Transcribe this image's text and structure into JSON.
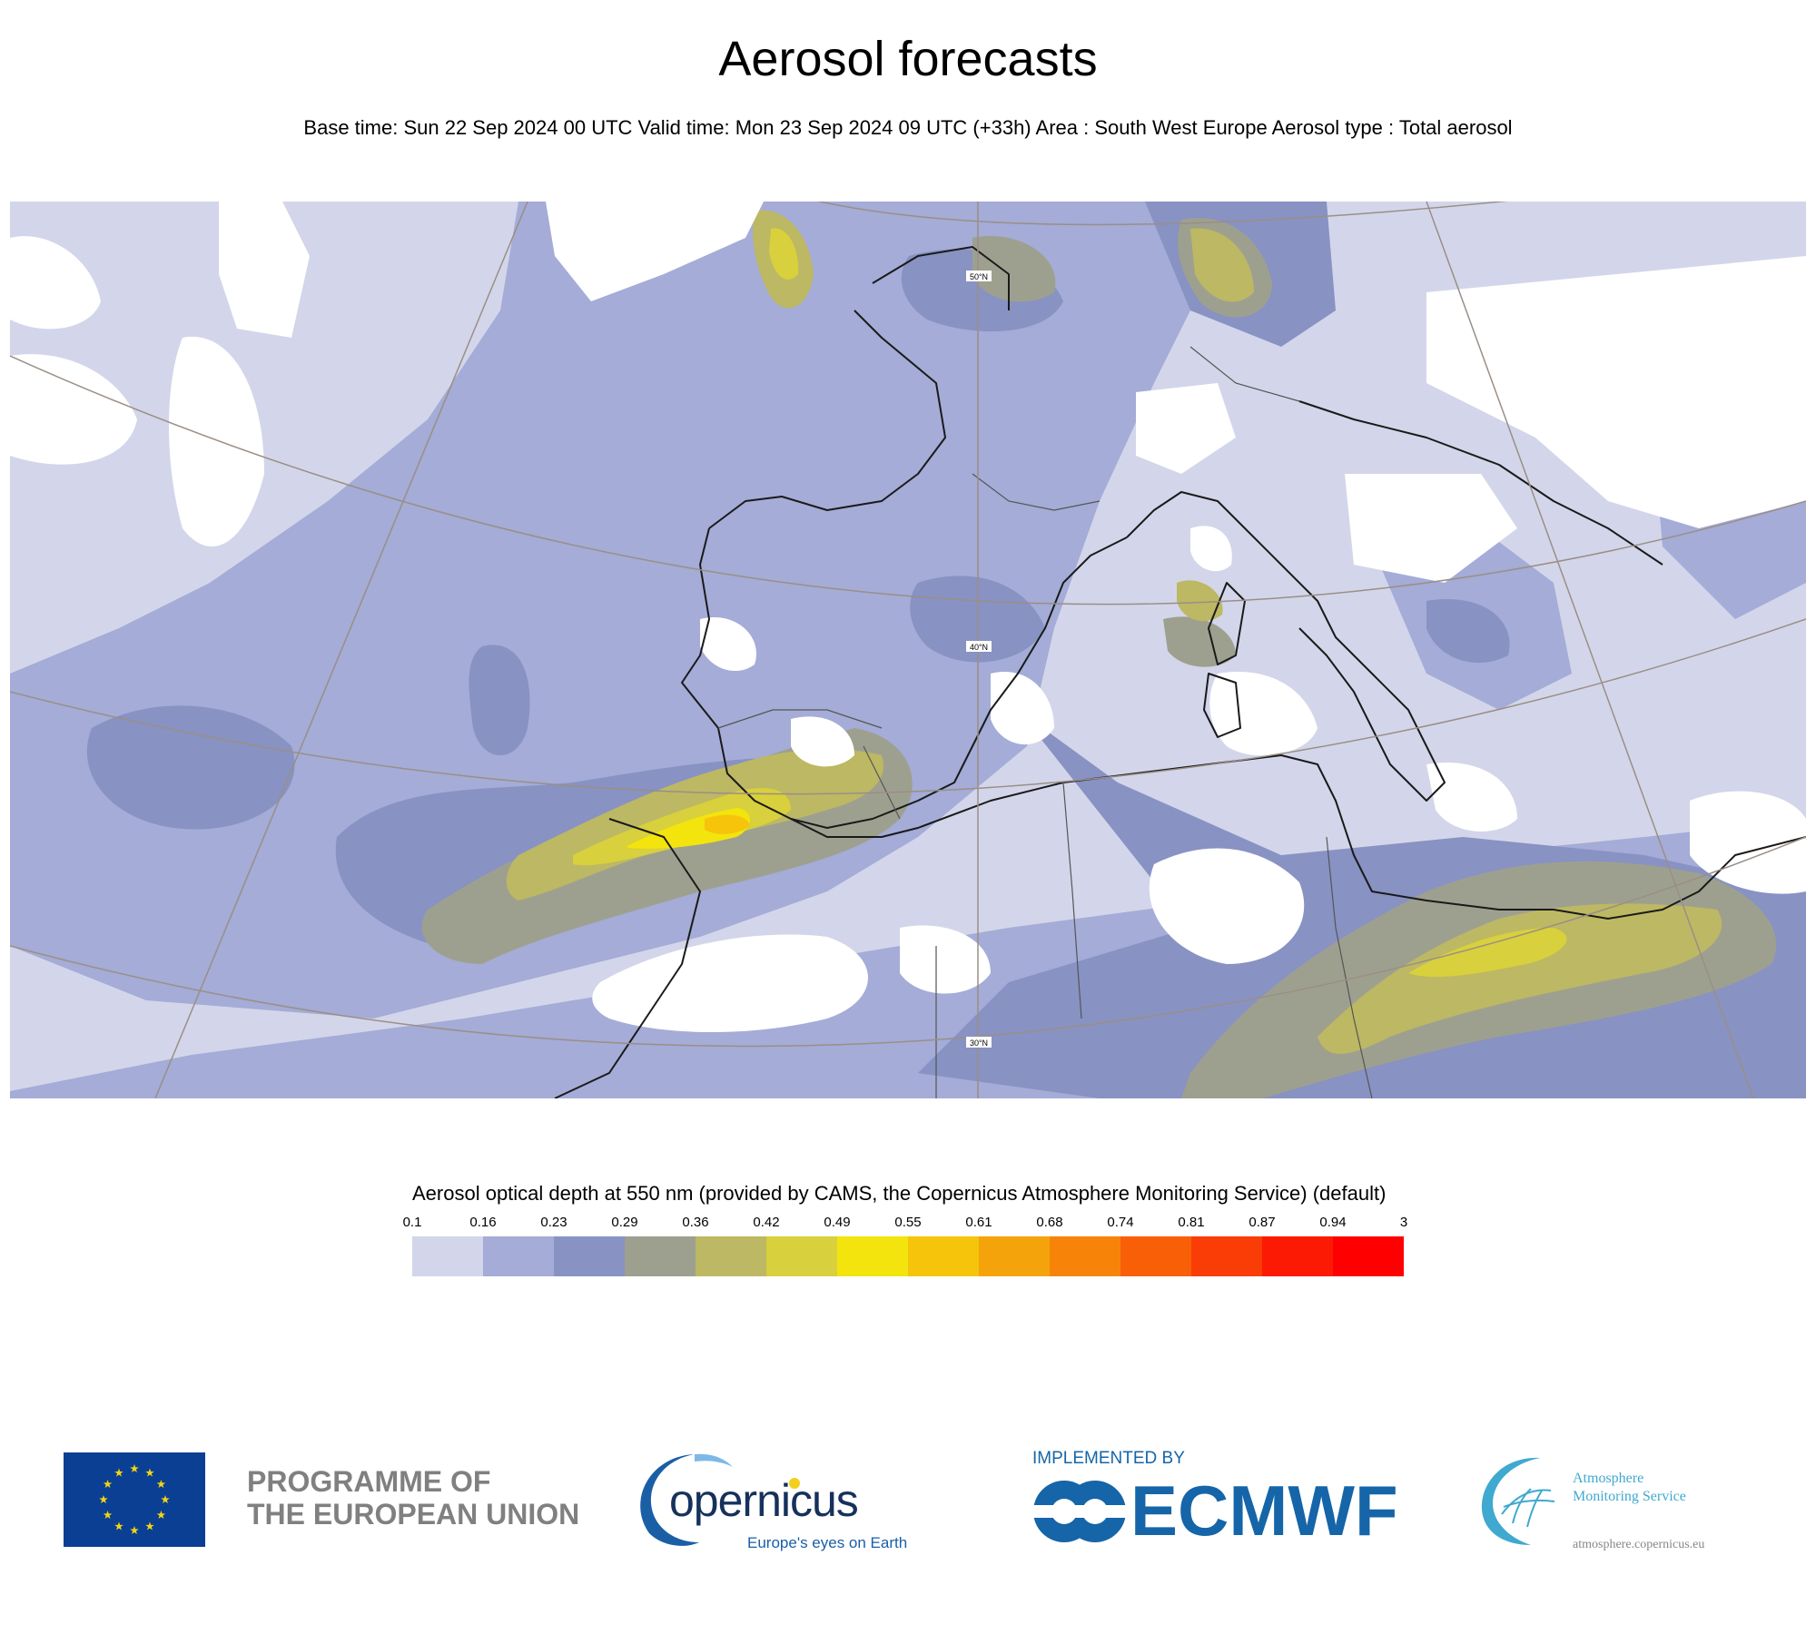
{
  "header": {
    "title": "Aerosol forecasts",
    "subtitle": "Base time: Sun 22 Sep 2024 00 UTC Valid time: Mon 23 Sep 2024 09 UTC (+33h) Area : South West Europe Aerosol type : Total aerosol"
  },
  "map": {
    "latitude_labels": [
      "50°N",
      "40°N",
      "30°N"
    ],
    "colors": {
      "background": "#d3d6ea",
      "water": "#ffffff",
      "land_line": "#1a1a1a",
      "graticule": "#9a8f86"
    }
  },
  "legend": {
    "title": "Aerosol optical depth at 550 nm (provided by CAMS, the Copernicus Atmosphere Monitoring Service) (default)",
    "ticks": [
      "0.1",
      "0.16",
      "0.23",
      "0.29",
      "0.36",
      "0.42",
      "0.49",
      "0.55",
      "0.61",
      "0.68",
      "0.74",
      "0.81",
      "0.87",
      "0.94",
      "3"
    ],
    "colors": [
      "#d3d6ea",
      "#a4acd7",
      "#8892c3",
      "#9ea08f",
      "#bdb863",
      "#d8d03c",
      "#f3e40e",
      "#f5c40b",
      "#f5a30a",
      "#f78409",
      "#f95f07",
      "#fa3d06",
      "#fd1a04",
      "#ff0000"
    ]
  },
  "logos": {
    "eu_text_line1": "PROGRAMME OF",
    "eu_text_line2": "THE EUROPEAN UNION",
    "copernicus_name": "opernicus",
    "copernicus_tagline": "Europe's eyes on Earth",
    "ecmwf_implemented": "IMPLEMENTED BY",
    "ecmwf_name": "ECMWF",
    "ams_line1": "Atmosphere",
    "ams_line2": "Monitoring Service",
    "ams_url": "atmosphere.copernicus.eu"
  }
}
